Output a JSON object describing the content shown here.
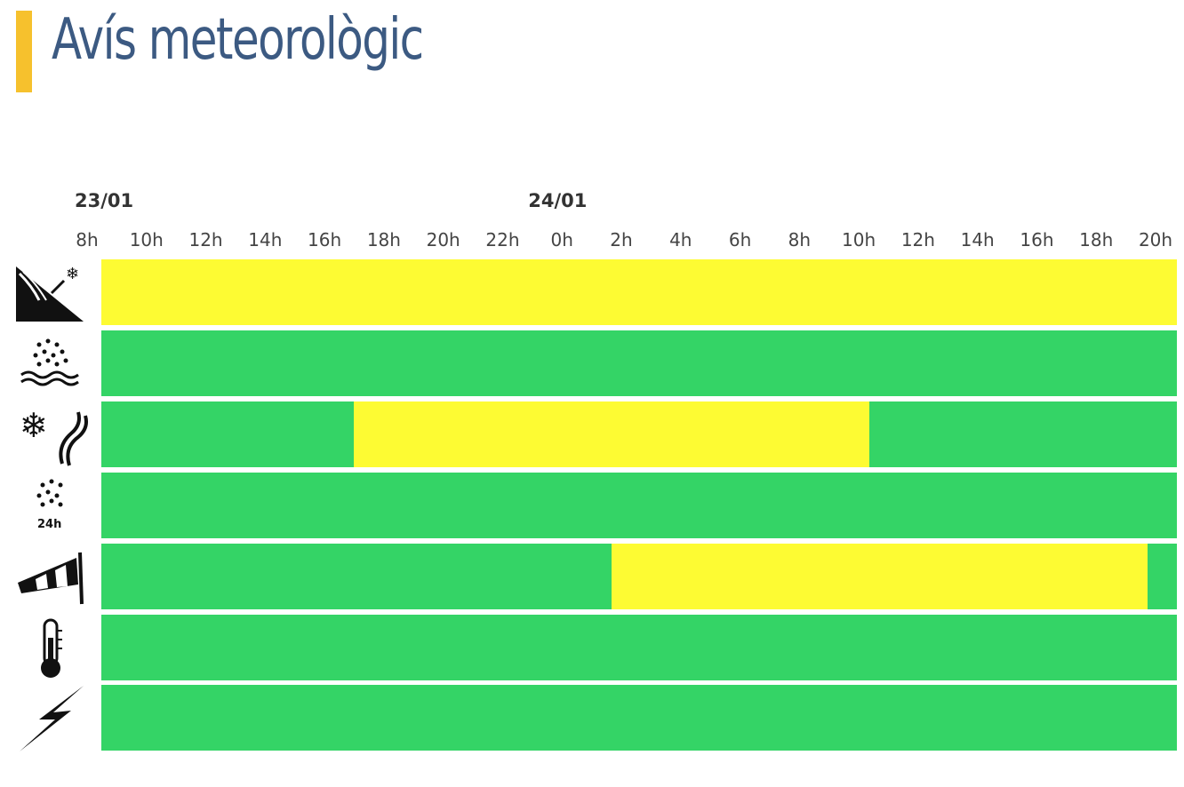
{
  "title": "Avís meteorològic",
  "colors": {
    "accent": "#f6c12d",
    "title": "#3c5a82",
    "green": "#34d466",
    "yellow": "#fdfb33"
  },
  "chart_data": {
    "type": "timeline",
    "dates": [
      {
        "label": "23/01",
        "hour_offset": 0
      },
      {
        "label": "24/01",
        "hour_offset": 16
      }
    ],
    "x_start_hour": 8,
    "x_end_hour": 44.7,
    "ticks": [
      {
        "label": "8h",
        "hour": 8
      },
      {
        "label": "10h",
        "hour": 10
      },
      {
        "label": "12h",
        "hour": 12
      },
      {
        "label": "14h",
        "hour": 14
      },
      {
        "label": "16h",
        "hour": 16
      },
      {
        "label": "18h",
        "hour": 18
      },
      {
        "label": "20h",
        "hour": 20
      },
      {
        "label": "22h",
        "hour": 22
      },
      {
        "label": "0h",
        "hour": 24
      },
      {
        "label": "2h",
        "hour": 26
      },
      {
        "label": "4h",
        "hour": 28
      },
      {
        "label": "6h",
        "hour": 30
      },
      {
        "label": "8h",
        "hour": 32
      },
      {
        "label": "10h",
        "hour": 34
      },
      {
        "label": "12h",
        "hour": 36
      },
      {
        "label": "14h",
        "hour": 38
      },
      {
        "label": "16h",
        "hour": 40
      },
      {
        "label": "18h",
        "hour": 42
      },
      {
        "label": "20h",
        "hour": 44
      }
    ],
    "rows": [
      {
        "icon": "avalanche-icon",
        "segments": [
          {
            "start": 8,
            "end": 44.7,
            "level": "yellow"
          }
        ]
      },
      {
        "icon": "rain-icon",
        "segments": [
          {
            "start": 8,
            "end": 44.7,
            "level": "green"
          }
        ]
      },
      {
        "icon": "snow-icon",
        "segments": [
          {
            "start": 8,
            "end": 16.6,
            "level": "green"
          },
          {
            "start": 16.6,
            "end": 34.2,
            "level": "yellow"
          },
          {
            "start": 34.2,
            "end": 44.7,
            "level": "green"
          }
        ]
      },
      {
        "icon": "rain-24h-icon",
        "icon_text": "24h",
        "segments": [
          {
            "start": 8,
            "end": 44.7,
            "level": "green"
          }
        ]
      },
      {
        "icon": "wind-icon",
        "segments": [
          {
            "start": 8,
            "end": 25.4,
            "level": "green"
          },
          {
            "start": 25.4,
            "end": 43.7,
            "level": "yellow"
          },
          {
            "start": 43.7,
            "end": 44.7,
            "level": "green"
          }
        ]
      },
      {
        "icon": "thermometer-icon",
        "segments": [
          {
            "start": 8,
            "end": 44.7,
            "level": "green"
          }
        ]
      },
      {
        "icon": "lightning-icon",
        "segments": [
          {
            "start": 8,
            "end": 44.7,
            "level": "green"
          }
        ]
      }
    ]
  }
}
